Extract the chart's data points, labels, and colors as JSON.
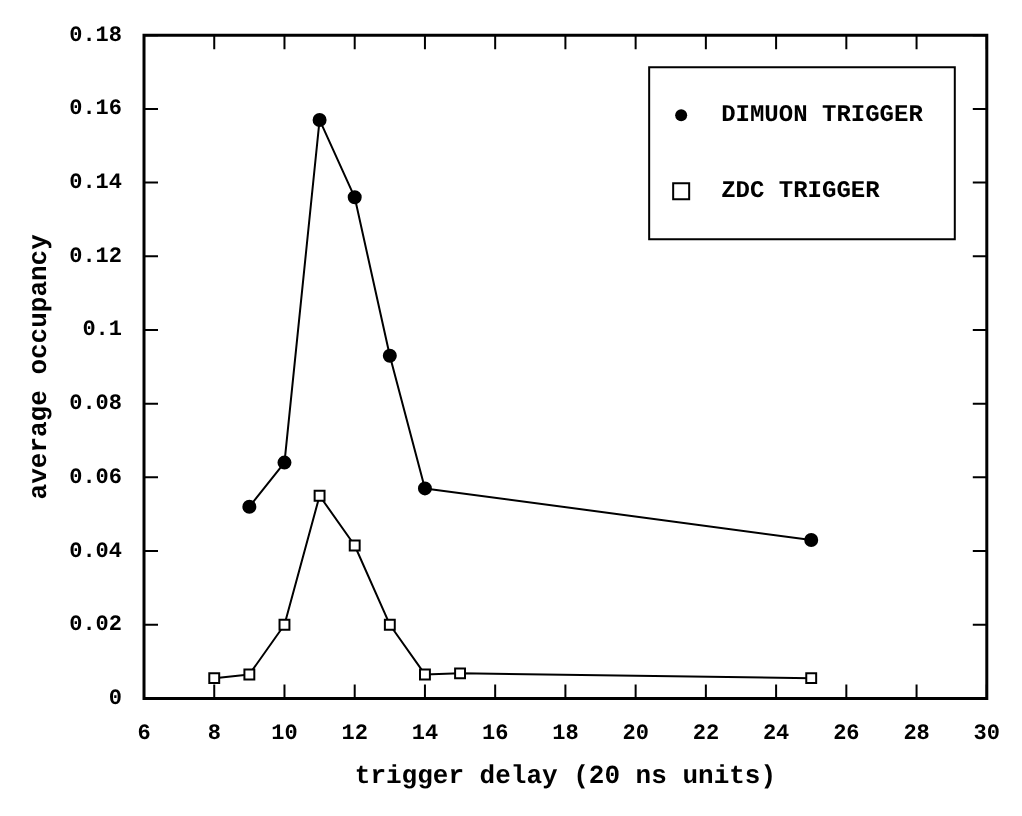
{
  "chart_data": {
    "type": "line",
    "xlabel": "trigger delay (20 ns units)",
    "ylabel": "average occupancy",
    "xlim": [
      6,
      30
    ],
    "xticks": [
      6,
      8,
      10,
      12,
      14,
      16,
      18,
      20,
      22,
      24,
      26,
      28,
      30
    ],
    "ylim": [
      0,
      0.18
    ],
    "yticks": [
      0,
      0.02,
      0.04,
      0.06,
      0.08,
      0.1,
      0.12,
      0.14,
      0.16,
      0.18
    ],
    "legend": "top right",
    "series": [
      {
        "name": "DIMUON TRIGGER",
        "color": "#000000",
        "marker": "circle",
        "x": [
          9,
          10,
          11,
          12,
          13,
          14,
          25
        ],
        "values": [
          0.052,
          0.064,
          0.157,
          0.136,
          0.093,
          0.057,
          0.043
        ]
      },
      {
        "name": "ZDC TRIGGER",
        "color": "#000000",
        "marker": "square",
        "x": [
          8,
          9,
          10,
          11,
          12,
          13,
          14,
          15,
          25
        ],
        "values": [
          0.0055,
          0.0065,
          0.02,
          0.055,
          0.0415,
          0.02,
          0.0065,
          0.0068,
          0.0055
        ]
      }
    ]
  }
}
